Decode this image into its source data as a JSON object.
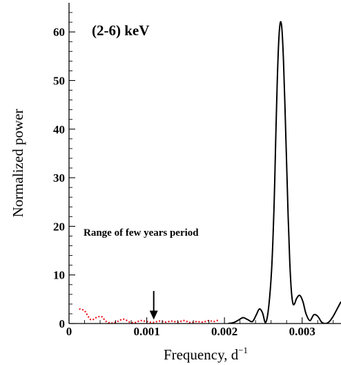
{
  "chart_data": {
    "type": "line",
    "title": "(2-6) keV",
    "xlabel": "Frequency, d",
    "xlabel_sup": "−1",
    "ylabel": "Normalized power",
    "xlim": [
      0,
      0.0035
    ],
    "ylim": [
      0,
      66
    ],
    "x_ticks": [
      0,
      0.001,
      0.002,
      0.003
    ],
    "x_tick_labels": [
      "0",
      "0.001",
      "0.002",
      "0.003"
    ],
    "y_ticks": [
      0,
      10,
      20,
      30,
      40,
      50,
      60
    ],
    "y_tick_labels": [
      "0",
      "10",
      "20",
      "30",
      "40",
      "50",
      "60"
    ],
    "grid": false,
    "annotation": {
      "text": "Range of few years period",
      "arrow_x": 0.00109,
      "arrow_y_from": 6.7,
      "arrow_y_to": 0.8
    },
    "series": [
      {
        "style": "dotted",
        "color": "#e8141b",
        "x": [
          0.00013,
          0.0002,
          0.00028,
          0.00036,
          0.00042,
          0.00048,
          0.00055,
          0.00062,
          0.0007,
          0.00078,
          0.00085,
          0.00092,
          0.001,
          0.00108,
          0.00116,
          0.00124,
          0.00132,
          0.0014,
          0.00148,
          0.00156,
          0.00164,
          0.00172,
          0.0018,
          0.00186,
          0.00192
        ],
        "y": [
          3.0,
          2.6,
          0.8,
          1.3,
          1.4,
          0.4,
          0.1,
          0.4,
          0.9,
          0.3,
          0.2,
          0.6,
          0.4,
          0.2,
          0.5,
          0.3,
          0.5,
          0.3,
          0.6,
          0.2,
          0.4,
          0.3,
          0.6,
          0.4,
          0.7
        ]
      },
      {
        "style": "solid",
        "color": "#000000",
        "x": [
          0.00205,
          0.00212,
          0.00218,
          0.00224,
          0.0023,
          0.00236,
          0.00241,
          0.00245,
          0.00249,
          0.00253,
          0.00257,
          0.00261,
          0.00264,
          0.00266,
          0.00268,
          0.0027,
          0.00272,
          0.00274,
          0.00276,
          0.00278,
          0.0028,
          0.00282,
          0.00284,
          0.00286,
          0.00288,
          0.0029,
          0.00293,
          0.00297,
          0.00301,
          0.00305,
          0.0031,
          0.00315,
          0.0032,
          0.00325,
          0.0033,
          0.00335,
          0.0034,
          0.00345,
          0.0035
        ],
        "y": [
          0.0,
          0.2,
          0.7,
          1.2,
          0.8,
          0.4,
          1.8,
          3.0,
          2.2,
          0.2,
          3.5,
          12.0,
          25.0,
          38.0,
          50.0,
          58.5,
          62.0,
          60.5,
          54.0,
          44.0,
          33.0,
          22.0,
          13.0,
          7.0,
          4.2,
          4.0,
          5.2,
          5.8,
          4.5,
          2.0,
          0.6,
          1.8,
          1.5,
          0.3,
          0.0,
          0.4,
          1.5,
          3.0,
          4.5
        ]
      }
    ]
  }
}
